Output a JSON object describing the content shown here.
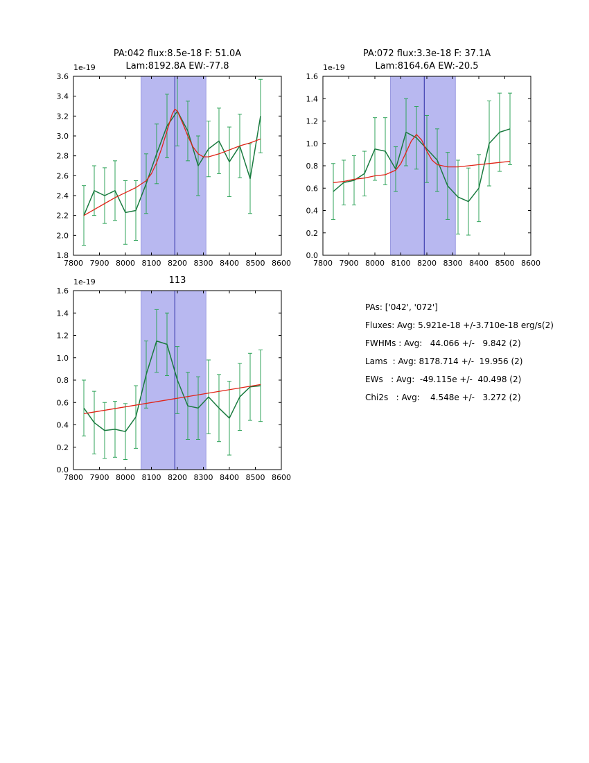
{
  "stats": {
    "lines": [
      "PAs: ['042', '072']",
      "Fluxes: Avg: 5.921e-18 +/-3.710e-18 erg/s(2)",
      "FWHMs : Avg:   44.066 +/-   9.842 (2)",
      "Lams  : Avg: 8178.714 +/-  19.956 (2)",
      "EWs   : Avg:  -49.115e +/-  40.498 (2)",
      "Chi2s   : Avg:    4.548e +/-   3.272 (2)"
    ]
  },
  "colors": {
    "data_line": "#1a7a3f",
    "error_bar": "#2fa35a",
    "fit_line": "#e02417",
    "band_fill": "#b8b8f0",
    "band_edge": "#9a9ae0",
    "vline": "#2929a3",
    "axis": "#000000"
  },
  "chart_data": [
    {
      "type": "line",
      "title_lines": [
        "PA:042 flux:8.5e-18 F: 51.0A",
        "Lam:8192.8A EW:-77.8"
      ],
      "offset_label": "1e-19",
      "xlim": [
        7800,
        8600
      ],
      "ylim": [
        1.8,
        3.6
      ],
      "xtick_vals": [
        7800,
        7900,
        8000,
        8100,
        8200,
        8300,
        8400,
        8500,
        8600
      ],
      "xtick_labels": [
        "7800",
        "7900",
        "8000",
        "8100",
        "8200",
        "8300",
        "8400",
        "8500",
        "8600"
      ],
      "ytick_vals": [
        1.8,
        2.0,
        2.2,
        2.4,
        2.6,
        2.8,
        3.0,
        3.2,
        3.4,
        3.6
      ],
      "ytick_labels": [
        "1.8",
        "2.0",
        "2.2",
        "2.4",
        "2.6",
        "2.8",
        "3.0",
        "3.2",
        "3.4",
        "3.6"
      ],
      "band": [
        8060,
        8310
      ],
      "vline": 8190,
      "x": [
        7840,
        7880,
        7920,
        7960,
        8000,
        8040,
        8080,
        8120,
        8160,
        8200,
        8240,
        8280,
        8320,
        8360,
        8400,
        8440,
        8480,
        8520
      ],
      "series": [
        {
          "name": "spectrum",
          "values": [
            2.2,
            2.45,
            2.4,
            2.45,
            2.23,
            2.25,
            2.52,
            2.82,
            3.1,
            3.25,
            3.05,
            2.7,
            2.87,
            2.95,
            2.74,
            2.9,
            2.57,
            3.2
          ],
          "errors": [
            0.3,
            0.25,
            0.28,
            0.3,
            0.32,
            0.3,
            0.3,
            0.3,
            0.32,
            0.35,
            0.3,
            0.3,
            0.28,
            0.33,
            0.35,
            0.32,
            0.35,
            0.37
          ]
        },
        {
          "name": "fit",
          "x": [
            7840,
            7880,
            7920,
            7960,
            8000,
            8040,
            8080,
            8100,
            8120,
            8140,
            8160,
            8180,
            8190,
            8200,
            8220,
            8240,
            8260,
            8280,
            8300,
            8320,
            8360,
            8400,
            8440,
            8480,
            8520
          ],
          "values": [
            2.2,
            2.26,
            2.32,
            2.38,
            2.43,
            2.48,
            2.55,
            2.62,
            2.73,
            2.88,
            3.05,
            3.22,
            3.27,
            3.25,
            3.13,
            3.0,
            2.89,
            2.82,
            2.79,
            2.79,
            2.82,
            2.86,
            2.9,
            2.93,
            2.97
          ]
        }
      ]
    },
    {
      "type": "line",
      "title_lines": [
        "PA:072 flux:3.3e-18 F: 37.1A",
        "Lam:8164.6A EW:-20.5"
      ],
      "offset_label": "1e-19",
      "xlim": [
        7800,
        8600
      ],
      "ylim": [
        0.0,
        1.6
      ],
      "xtick_vals": [
        7800,
        7900,
        8000,
        8100,
        8200,
        8300,
        8400,
        8500,
        8600
      ],
      "xtick_labels": [
        "7800",
        "7900",
        "8000",
        "8100",
        "8200",
        "8300",
        "8400",
        "8500",
        "8600"
      ],
      "ytick_vals": [
        0.0,
        0.2,
        0.4,
        0.6,
        0.8,
        1.0,
        1.2,
        1.4,
        1.6
      ],
      "ytick_labels": [
        "0.0",
        "0.2",
        "0.4",
        "0.6",
        "0.8",
        "1.0",
        "1.2",
        "1.4",
        "1.6"
      ],
      "band": [
        8060,
        8310
      ],
      "vline": 8190,
      "x": [
        7840,
        7880,
        7920,
        7960,
        8000,
        8040,
        8080,
        8120,
        8160,
        8200,
        8240,
        8280,
        8320,
        8360,
        8400,
        8440,
        8480,
        8520
      ],
      "series": [
        {
          "name": "spectrum",
          "values": [
            0.57,
            0.65,
            0.67,
            0.73,
            0.95,
            0.93,
            0.77,
            1.1,
            1.05,
            0.95,
            0.85,
            0.62,
            0.52,
            0.48,
            0.6,
            1.0,
            1.1,
            1.13
          ],
          "errors": [
            0.25,
            0.2,
            0.22,
            0.2,
            0.28,
            0.3,
            0.2,
            0.3,
            0.28,
            0.3,
            0.28,
            0.3,
            0.33,
            0.3,
            0.3,
            0.38,
            0.35,
            0.32
          ]
        },
        {
          "name": "fit",
          "x": [
            7840,
            7880,
            7920,
            7960,
            8000,
            8040,
            8080,
            8100,
            8120,
            8140,
            8160,
            8180,
            8200,
            8220,
            8240,
            8280,
            8320,
            8360,
            8400,
            8440,
            8480,
            8520
          ],
          "values": [
            0.65,
            0.66,
            0.68,
            0.69,
            0.71,
            0.72,
            0.76,
            0.82,
            0.92,
            1.02,
            1.08,
            1.03,
            0.93,
            0.85,
            0.81,
            0.79,
            0.79,
            0.8,
            0.81,
            0.82,
            0.83,
            0.84
          ]
        }
      ]
    },
    {
      "type": "line",
      "title_lines": [
        "113"
      ],
      "offset_label": "1e-19",
      "xlim": [
        7800,
        8600
      ],
      "ylim": [
        0.0,
        1.6
      ],
      "xtick_vals": [
        7800,
        7900,
        8000,
        8100,
        8200,
        8300,
        8400,
        8500,
        8600
      ],
      "xtick_labels": [
        "7800",
        "7900",
        "8000",
        "8100",
        "8200",
        "8300",
        "8400",
        "8500",
        "8600"
      ],
      "ytick_vals": [
        0.0,
        0.2,
        0.4,
        0.6,
        0.8,
        1.0,
        1.2,
        1.4,
        1.6
      ],
      "ytick_labels": [
        "0.0",
        "0.2",
        "0.4",
        "0.6",
        "0.8",
        "1.0",
        "1.2",
        "1.4",
        "1.6"
      ],
      "band": [
        8060,
        8310
      ],
      "vline": 8190,
      "x": [
        7840,
        7880,
        7920,
        7960,
        8000,
        8040,
        8080,
        8120,
        8160,
        8200,
        8240,
        8280,
        8320,
        8360,
        8400,
        8440,
        8480,
        8520
      ],
      "series": [
        {
          "name": "spectrum",
          "values": [
            0.55,
            0.42,
            0.35,
            0.36,
            0.34,
            0.47,
            0.85,
            1.15,
            1.12,
            0.8,
            0.57,
            0.55,
            0.65,
            0.55,
            0.46,
            0.65,
            0.74,
            0.75
          ],
          "errors": [
            0.25,
            0.28,
            0.25,
            0.25,
            0.25,
            0.28,
            0.3,
            0.28,
            0.28,
            0.3,
            0.3,
            0.28,
            0.33,
            0.3,
            0.33,
            0.3,
            0.3,
            0.32
          ]
        },
        {
          "name": "fit",
          "x": [
            7840,
            8520
          ],
          "values": [
            0.5,
            0.76
          ]
        }
      ]
    }
  ]
}
